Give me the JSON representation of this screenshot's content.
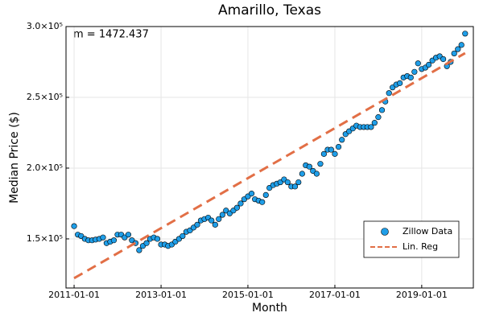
{
  "chart_data": {
    "type": "scatter",
    "title": "Amarillo, Texas",
    "xlabel": "Month",
    "ylabel": "Median Price ($)",
    "annotation": "m = 1472.437",
    "xlim": [
      "2010-10-25",
      "2020-03-10"
    ],
    "xticks": [
      "2011-01-01",
      "2013-01-01",
      "2015-01-01",
      "2017-01-01",
      "2019-01-01"
    ],
    "ylim": [
      115300,
      300000
    ],
    "yticks": [
      {
        "value": 150000,
        "label": "1.5×10⁵"
      },
      {
        "value": 200000,
        "label": "2.0×10⁵"
      },
      {
        "value": 250000,
        "label": "2.5×10⁵"
      },
      {
        "value": 300000,
        "label": "3.0×10⁵"
      }
    ],
    "grid": true,
    "legend": "bottom-right",
    "series": [
      {
        "name": "Zillow Data",
        "type": "scatter",
        "color": "#1f9ee8",
        "x": [
          "2011-01-01",
          "2011-02-01",
          "2011-03-01",
          "2011-04-01",
          "2011-05-01",
          "2011-06-01",
          "2011-07-01",
          "2011-08-01",
          "2011-09-01",
          "2011-10-01",
          "2011-11-01",
          "2011-12-01",
          "2012-01-01",
          "2012-02-01",
          "2012-03-01",
          "2012-04-01",
          "2012-05-01",
          "2012-06-01",
          "2012-07-01",
          "2012-08-01",
          "2012-09-01",
          "2012-10-01",
          "2012-11-01",
          "2012-12-01",
          "2013-01-01",
          "2013-02-01",
          "2013-03-01",
          "2013-04-01",
          "2013-05-01",
          "2013-06-01",
          "2013-07-01",
          "2013-08-01",
          "2013-09-01",
          "2013-10-01",
          "2013-11-01",
          "2013-12-01",
          "2014-01-01",
          "2014-02-01",
          "2014-03-01",
          "2014-04-01",
          "2014-05-01",
          "2014-06-01",
          "2014-07-01",
          "2014-08-01",
          "2014-09-01",
          "2014-10-01",
          "2014-11-01",
          "2014-12-01",
          "2015-01-01",
          "2015-02-01",
          "2015-03-01",
          "2015-04-01",
          "2015-05-01",
          "2015-06-01",
          "2015-07-01",
          "2015-08-01",
          "2015-09-01",
          "2015-10-01",
          "2015-11-01",
          "2015-12-01",
          "2016-01-01",
          "2016-02-01",
          "2016-03-01",
          "2016-04-01",
          "2016-05-01",
          "2016-06-01",
          "2016-07-01",
          "2016-08-01",
          "2016-09-01",
          "2016-10-01",
          "2016-11-01",
          "2016-12-01",
          "2017-01-01",
          "2017-02-01",
          "2017-03-01",
          "2017-04-01",
          "2017-05-01",
          "2017-06-01",
          "2017-07-01",
          "2017-08-01",
          "2017-09-01",
          "2017-10-01",
          "2017-11-01",
          "2017-12-01",
          "2018-01-01",
          "2018-02-01",
          "2018-03-01",
          "2018-04-01",
          "2018-05-01",
          "2018-06-01",
          "2018-07-01",
          "2018-08-01",
          "2018-09-01",
          "2018-10-01",
          "2018-11-01",
          "2018-12-01",
          "2019-01-01",
          "2019-02-01",
          "2019-03-01",
          "2019-04-01",
          "2019-05-01",
          "2019-06-01",
          "2019-07-01",
          "2019-08-01",
          "2019-09-01",
          "2019-10-01",
          "2019-11-01",
          "2019-12-01",
          "2020-01-01"
        ],
        "values": [
          159000,
          153000,
          152000,
          150000,
          149000,
          149000,
          149500,
          150000,
          151000,
          147000,
          148000,
          149000,
          153000,
          153000,
          151000,
          153000,
          149000,
          147000,
          142000,
          145000,
          147000,
          150000,
          151000,
          150000,
          146000,
          146000,
          145000,
          146000,
          148000,
          150000,
          152000,
          155000,
          156000,
          158000,
          160000,
          163000,
          164000,
          165000,
          163000,
          160000,
          164000,
          167000,
          170000,
          168000,
          170000,
          172000,
          175000,
          178000,
          180000,
          182000,
          178000,
          177000,
          176000,
          181000,
          186000,
          188000,
          189000,
          190000,
          192000,
          190000,
          187000,
          187000,
          190000,
          196000,
          202000,
          201000,
          198000,
          196000,
          203000,
          210000,
          213000,
          213000,
          210000,
          215000,
          220000,
          224000,
          226000,
          228000,
          230000,
          229000,
          229000,
          229000,
          229000,
          232000,
          236000,
          241000,
          247000,
          253000,
          257000,
          259000,
          260000,
          264000,
          265000,
          264000,
          268000,
          274000,
          270000,
          271000,
          273000,
          276000,
          278000,
          279000,
          277000,
          272000,
          275000,
          281000,
          284000,
          287000,
          295000
        ]
      },
      {
        "name": "Lin. Reg",
        "type": "line",
        "color": "#e26f46",
        "x": [
          "2011-01-01",
          "2020-01-01"
        ],
        "values": [
          122200,
          281200
        ]
      }
    ]
  }
}
